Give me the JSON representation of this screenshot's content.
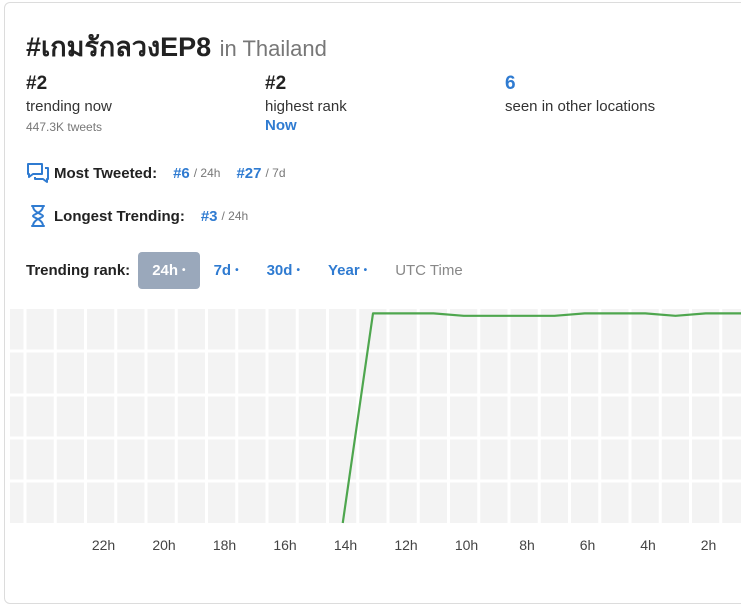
{
  "header": {
    "hashtag": "#เกมรักลวงEP8",
    "location": "in Thailand"
  },
  "stats": {
    "trending_now": {
      "value": "#2",
      "label": "trending now",
      "sub": "447.3K tweets"
    },
    "highest_rank": {
      "value": "#2",
      "label": "highest rank",
      "when": "Now"
    },
    "other_locations": {
      "value": "6",
      "label": "seen in other locations"
    }
  },
  "most_tweeted": {
    "label": "Most Tweeted:",
    "items": [
      {
        "rank": "#6",
        "period": "/ 24h"
      },
      {
        "rank": "#27",
        "period": "/ 7d"
      }
    ]
  },
  "longest_trending": {
    "label": "Longest Trending:",
    "rank": "#3",
    "period": "/ 24h"
  },
  "trending_rank": {
    "label": "Trending rank:",
    "ranges": [
      "24h",
      "7d",
      "30d",
      "Year"
    ],
    "selected": "24h",
    "utc_label": "UTC Time"
  },
  "colors": {
    "accent": "#2f7bd1",
    "line": "#4ea64e",
    "active_pill": "#9aa8bb"
  },
  "chart_data": {
    "type": "line",
    "x_tick_labels": [
      "22h",
      "20h",
      "18h",
      "16h",
      "14h",
      "12h",
      "10h",
      "8h",
      "6h",
      "4h",
      "2h"
    ],
    "x_hours_ago": [
      24,
      23,
      22,
      21,
      20,
      19,
      18,
      17,
      16,
      15,
      14,
      13,
      12,
      11,
      10,
      9,
      8,
      7,
      6,
      5,
      4,
      3,
      2,
      1,
      0
    ],
    "rank": [
      null,
      null,
      null,
      null,
      null,
      null,
      null,
      null,
      null,
      null,
      null,
      null,
      2,
      2,
      2,
      3,
      3,
      3,
      3,
      2,
      2,
      2,
      3,
      2,
      2
    ],
    "entered_at_hours_ago": 13,
    "y_range": [
      1,
      50
    ],
    "grid": true
  }
}
